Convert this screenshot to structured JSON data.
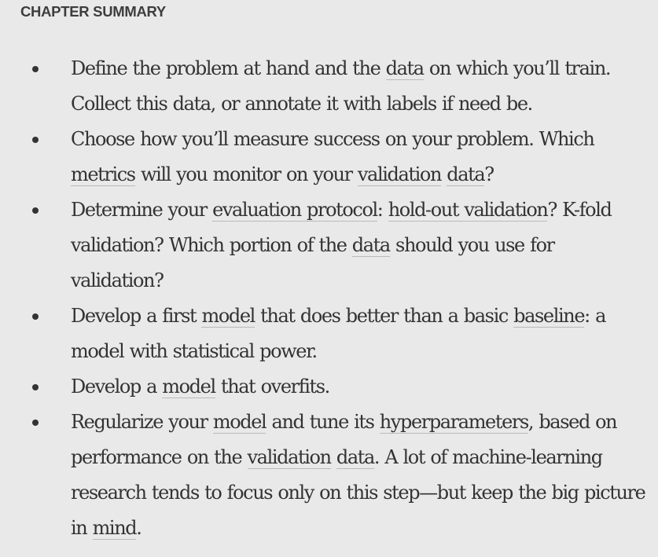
{
  "heading": "CHAPTER SUMMARY",
  "items": [
    {
      "segments": [
        {
          "text": "Define the problem at hand and the "
        },
        {
          "text": "data",
          "link": true
        },
        {
          "text": " on which you’ll train. Collect this data, or annotate it with labels if need be."
        }
      ]
    },
    {
      "segments": [
        {
          "text": "Choose how you’ll measure success on your problem. Which "
        },
        {
          "text": "metrics",
          "link": true
        },
        {
          "text": " will you monitor on your "
        },
        {
          "text": "validation",
          "link": true
        },
        {
          "text": " "
        },
        {
          "text": "data",
          "link": true
        },
        {
          "text": "?"
        }
      ]
    },
    {
      "segments": [
        {
          "text": "Determine your "
        },
        {
          "text": "evaluation protocol",
          "link": true
        },
        {
          "text": ": "
        },
        {
          "text": "hold-out validation",
          "link": true
        },
        {
          "text": "? K-fold validation? Which portion of the "
        },
        {
          "text": "data",
          "link": true
        },
        {
          "text": " should you use for validation?"
        }
      ]
    },
    {
      "segments": [
        {
          "text": "Develop a first "
        },
        {
          "text": "model",
          "link": true
        },
        {
          "text": " that does better than a basic "
        },
        {
          "text": "baseline",
          "link": true
        },
        {
          "text": ": a model with statistical power."
        }
      ]
    },
    {
      "segments": [
        {
          "text": "Develop a "
        },
        {
          "text": "model",
          "link": true
        },
        {
          "text": " that overfits."
        }
      ]
    },
    {
      "segments": [
        {
          "text": "Regularize your "
        },
        {
          "text": "model",
          "link": true
        },
        {
          "text": " and tune its "
        },
        {
          "text": "hyperparameters",
          "link": true
        },
        {
          "text": ", based on performance on the "
        },
        {
          "text": "validation",
          "link": true
        },
        {
          "text": " "
        },
        {
          "text": "data",
          "link": true
        },
        {
          "text": ". A lot of machine-learning research tends to focus only on this step—but keep the big picture in "
        },
        {
          "text": "mind",
          "link": true
        },
        {
          "text": "."
        }
      ]
    }
  ]
}
